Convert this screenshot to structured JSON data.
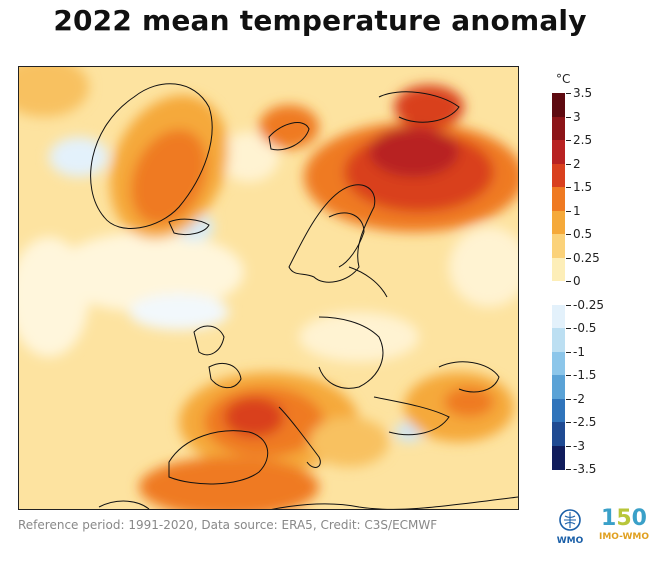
{
  "title": "2022 mean temperature anomaly",
  "colorbar": {
    "unit": "°C",
    "levels": [
      "3.5",
      "3",
      "2.5",
      "2",
      "1.5",
      "1",
      "0.5",
      "0.25",
      "0",
      "-0.25",
      "-0.5",
      "-1",
      "-1.5",
      "-2",
      "-2.5",
      "-3",
      "-3.5"
    ],
    "colors": [
      "#5e0a10",
      "#8c1418",
      "#b82222",
      "#d9401e",
      "#ef7a22",
      "#f5a93a",
      "#fbd27a",
      "#fdeeb8",
      "#ffffff",
      "#e3f1fb",
      "#bcdff2",
      "#8cc6ea",
      "#5aa2d6",
      "#2f74bb",
      "#1f4a92",
      "#101c5c"
    ]
  },
  "footer": {
    "text": "Reference period: 1991-2020, Data source: ERA5, Credit: C3S/ECMWF"
  },
  "logos": {
    "wmo": "WMO",
    "imo_mark_1": "1",
    "imo_mark_5": "5",
    "imo_mark_0": "0",
    "imo": "IMO-WMO"
  },
  "icons": [
    "wmo-emblem-icon",
    "imo-150-logo-icon"
  ]
}
